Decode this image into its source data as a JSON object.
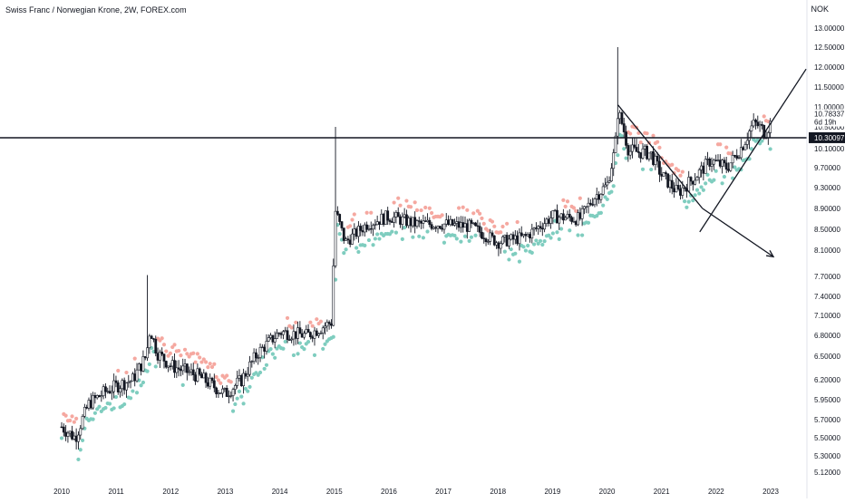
{
  "header": {
    "title": "Swiss Franc / Norwegian Krone, 2W, FOREX.com",
    "currency": "NOK"
  },
  "chart_data": {
    "type": "candlestick",
    "y_ticks": [
      "13.00000",
      "12.50000",
      "12.00000",
      "11.50000",
      "11.00000",
      "10.50000",
      "10.10000",
      "9.70000",
      "9.30000",
      "8.90000",
      "8.50000",
      "8.10000",
      "7.70000",
      "7.40000",
      "7.10000",
      "6.80000",
      "6.50000",
      "6.20000",
      "5.95000",
      "5.70000",
      "5.50000",
      "5.30000",
      "5.12000"
    ],
    "x_ticks": [
      "2010",
      "2011",
      "2012",
      "2013",
      "2014",
      "2015",
      "2016",
      "2017",
      "2018",
      "2019",
      "2020",
      "2021",
      "2022",
      "2023"
    ],
    "x_range": [
      2010.0,
      2023.7
    ],
    "price_labels": {
      "last_price": "10.78337",
      "countdown": "6d 19h",
      "level": "10.30097"
    },
    "level_value": 10.30097,
    "last_value": 10.78337,
    "colors": {
      "up_dot": "#7fcdbf",
      "down_dot": "#f5a8a0",
      "candle": "#131722",
      "level_label_bg": "#131722",
      "level_label_fg": "#ffffff"
    },
    "anchors": [
      [
        2010.0,
        5.62
      ],
      [
        2010.25,
        5.5
      ],
      [
        2010.5,
        5.9
      ],
      [
        2010.8,
        6.05
      ],
      [
        2011.0,
        6.12
      ],
      [
        2011.3,
        6.2
      ],
      [
        2011.55,
        6.5
      ],
      [
        2011.62,
        6.9
      ],
      [
        2011.75,
        6.55
      ],
      [
        2012.0,
        6.38
      ],
      [
        2012.5,
        6.25
      ],
      [
        2013.0,
        6.02
      ],
      [
        2013.3,
        6.2
      ],
      [
        2013.6,
        6.55
      ],
      [
        2014.0,
        6.85
      ],
      [
        2014.5,
        6.8
      ],
      [
        2014.95,
        7.0
      ],
      [
        2015.02,
        8.85
      ],
      [
        2015.2,
        8.25
      ],
      [
        2015.6,
        8.6
      ],
      [
        2016.0,
        8.75
      ],
      [
        2016.5,
        8.6
      ],
      [
        2017.0,
        8.6
      ],
      [
        2017.5,
        8.55
      ],
      [
        2018.0,
        8.25
      ],
      [
        2018.5,
        8.35
      ],
      [
        2019.0,
        8.75
      ],
      [
        2019.5,
        8.7
      ],
      [
        2019.75,
        9.1
      ],
      [
        2020.0,
        9.35
      ],
      [
        2020.15,
        10.1
      ],
      [
        2020.2,
        10.9
      ],
      [
        2020.4,
        10.05
      ],
      [
        2020.8,
        10.0
      ],
      [
        2021.0,
        9.55
      ],
      [
        2021.3,
        9.2
      ],
      [
        2021.6,
        9.5
      ],
      [
        2021.9,
        9.85
      ],
      [
        2022.2,
        9.7
      ],
      [
        2022.45,
        10.1
      ],
      [
        2022.7,
        10.6
      ],
      [
        2022.9,
        10.4
      ],
      [
        2023.0,
        10.6
      ]
    ],
    "wick_spikes": [
      [
        2011.58,
        7.72
      ],
      [
        2015.02,
        10.5
      ],
      [
        2020.2,
        12.5
      ]
    ],
    "trendlines": [
      {
        "from": [
          2020.2,
          11.05
        ],
        "to": [
          2021.75,
          8.9
        ]
      },
      {
        "from": [
          2021.75,
          8.9
        ],
        "to": [
          2023.05,
          8.0
        ],
        "arrow": true
      },
      {
        "from": [
          2021.7,
          8.45
        ],
        "to": [
          2023.65,
          11.95
        ],
        "arrow": false
      }
    ]
  }
}
